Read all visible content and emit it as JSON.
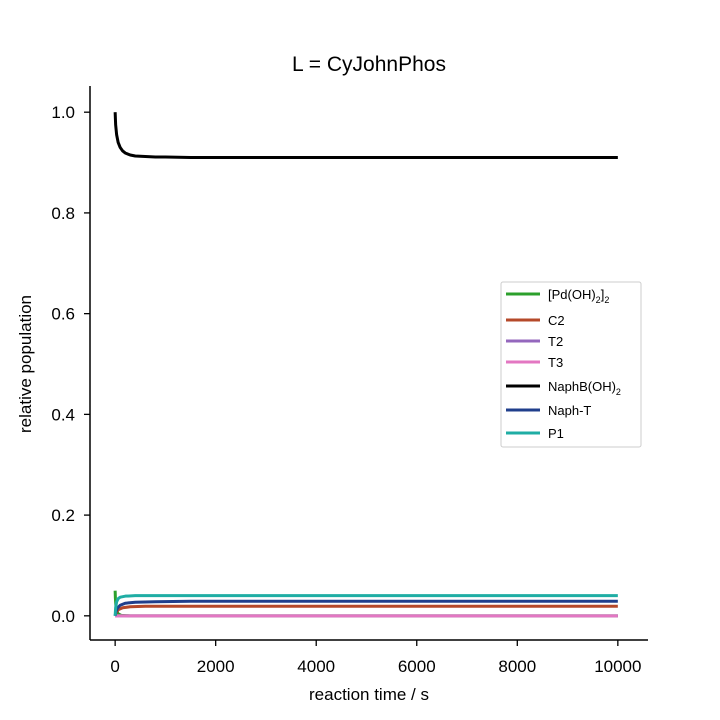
{
  "chart_data": {
    "type": "line",
    "title": "L = CyJohnPhos",
    "xlabel": "reaction time / s",
    "ylabel": "relative population",
    "xlim": [
      -500,
      10600
    ],
    "ylim": [
      -0.048,
      1.052
    ],
    "xticks": [
      0,
      2000,
      4000,
      6000,
      8000,
      10000
    ],
    "xtick_labels": [
      "0",
      "2000",
      "4000",
      "6000",
      "8000",
      "10000"
    ],
    "yticks": [
      0.0,
      0.2,
      0.4,
      0.6,
      0.8,
      1.0
    ],
    "ytick_labels": [
      "0.0",
      "0.2",
      "0.4",
      "0.6",
      "0.8",
      "1.0"
    ],
    "grid": false,
    "legend_position": "right",
    "series": [
      {
        "name": "[Pd(OH)2]2",
        "legend_main": "[Pd(OH)",
        "legend_sub1": "2",
        "legend_mid": "]",
        "legend_sub2": "2",
        "color": "#2ca02c",
        "x": [
          0,
          5,
          15,
          30,
          60,
          120,
          300,
          10000
        ],
        "y": [
          0.05,
          0.035,
          0.02,
          0.01,
          0.004,
          0.001,
          0.0,
          0.0
        ]
      },
      {
        "name": "C2",
        "color": "#b5492a",
        "x": [
          0,
          20,
          60,
          150,
          300,
          600,
          1000,
          10000
        ],
        "y": [
          0.0,
          0.006,
          0.012,
          0.016,
          0.018,
          0.019,
          0.019,
          0.019
        ]
      },
      {
        "name": "T2",
        "color": "#9467bd",
        "x": [
          0,
          10000
        ],
        "y": [
          0.0,
          0.0
        ]
      },
      {
        "name": "T3",
        "color": "#e377c2",
        "x": [
          0,
          10000
        ],
        "y": [
          0.0,
          0.0
        ]
      },
      {
        "name": "NaphB(OH)2",
        "legend_main": "NaphB(OH)",
        "legend_sub1": "2",
        "color": "#000000",
        "x": [
          0,
          10,
          30,
          60,
          100,
          150,
          200,
          300,
          400,
          600,
          800,
          1000,
          1500,
          2000,
          10000
        ],
        "y": [
          1.0,
          0.975,
          0.955,
          0.94,
          0.93,
          0.923,
          0.919,
          0.915,
          0.913,
          0.912,
          0.911,
          0.911,
          0.91,
          0.91,
          0.91
        ]
      },
      {
        "name": "Naph-T",
        "color": "#203f8c",
        "x": [
          0,
          20,
          50,
          100,
          200,
          400,
          800,
          1500,
          10000
        ],
        "y": [
          0.0,
          0.01,
          0.016,
          0.021,
          0.025,
          0.027,
          0.028,
          0.029,
          0.029
        ]
      },
      {
        "name": "P1",
        "color": "#1fada4",
        "x": [
          0,
          10,
          30,
          60,
          100,
          200,
          400,
          800,
          10000
        ],
        "y": [
          0.0,
          0.016,
          0.028,
          0.034,
          0.037,
          0.039,
          0.04,
          0.04,
          0.04
        ]
      }
    ]
  }
}
